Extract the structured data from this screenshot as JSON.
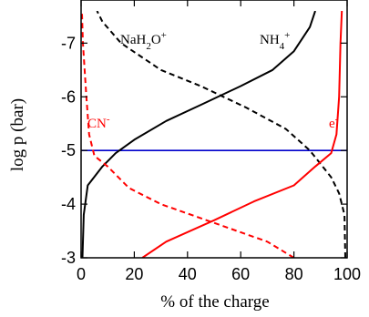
{
  "chart_data": {
    "type": "line",
    "xlabel": "% of the charge",
    "ylabel": "log p (bar)",
    "xlim": [
      0,
      100
    ],
    "ylim": [
      -3,
      -7.6
    ],
    "y_inverted": true,
    "x_ticks": [
      "0",
      "20",
      "40",
      "60",
      "80",
      "100"
    ],
    "y_ticks": [
      "-3",
      "-4",
      "-5",
      "-6",
      "-7"
    ],
    "hline": {
      "y": -5,
      "color": "#0000cc"
    },
    "series": [
      {
        "name": "NH4+",
        "color": "#000000",
        "dash": "solid",
        "points": [
          [
            0.5,
            -3.0
          ],
          [
            1,
            -3.8
          ],
          [
            2.5,
            -4.35
          ],
          [
            8,
            -4.7
          ],
          [
            13,
            -4.95
          ],
          [
            20,
            -5.2
          ],
          [
            32,
            -5.55
          ],
          [
            45,
            -5.85
          ],
          [
            60,
            -6.2
          ],
          [
            72,
            -6.5
          ],
          [
            80,
            -6.85
          ],
          [
            86,
            -7.3
          ],
          [
            88,
            -7.6
          ]
        ]
      },
      {
        "name": "NaH2O+",
        "color": "#000000",
        "dash": "dashed",
        "points": [
          [
            99.3,
            -3.0
          ],
          [
            99,
            -3.8
          ],
          [
            97,
            -4.2
          ],
          [
            94,
            -4.5
          ],
          [
            86,
            -5.0
          ],
          [
            77,
            -5.4
          ],
          [
            62,
            -5.8
          ],
          [
            45,
            -6.2
          ],
          [
            30,
            -6.5
          ],
          [
            15,
            -7.0
          ],
          [
            8,
            -7.4
          ],
          [
            6,
            -7.6
          ]
        ]
      },
      {
        "name": "e-",
        "color": "#ff0000",
        "dash": "solid",
        "points": [
          [
            23,
            -3.0
          ],
          [
            32,
            -3.3
          ],
          [
            50,
            -3.7
          ],
          [
            65,
            -4.05
          ],
          [
            80,
            -4.35
          ],
          [
            88,
            -4.7
          ],
          [
            94,
            -4.95
          ],
          [
            96,
            -5.3
          ],
          [
            97,
            -6.0
          ],
          [
            97.5,
            -7.0
          ],
          [
            98,
            -7.6
          ]
        ]
      },
      {
        "name": "CN-",
        "color": "#ff0000",
        "dash": "dashed",
        "points": [
          [
            80,
            -3.0
          ],
          [
            70,
            -3.3
          ],
          [
            50,
            -3.65
          ],
          [
            30,
            -4.0
          ],
          [
            18,
            -4.3
          ],
          [
            10,
            -4.7
          ],
          [
            5,
            -4.9
          ],
          [
            3,
            -5.3
          ],
          [
            2,
            -6.0
          ],
          [
            0.7,
            -7.0
          ],
          [
            0.3,
            -7.6
          ]
        ]
      }
    ],
    "annotations": [
      {
        "text": "NaH2O+",
        "html": "NaH<tspan baseline-shift='sub' font-size='11'>2</tspan>O<tspan baseline-shift='super' font-size='11'>+</tspan>",
        "color": "#000000"
      },
      {
        "text": "NH4+",
        "html": "NH<tspan baseline-shift='sub' font-size='11'>4</tspan><tspan baseline-shift='super' font-size='11'>+</tspan>",
        "color": "#000000"
      },
      {
        "text": "CN-",
        "html": "CN<tspan baseline-shift='super' font-size='11'>-</tspan>",
        "color": "#ff0000"
      },
      {
        "text": "e-",
        "html": "e<tspan baseline-shift='super' font-size='11'>-</tspan>",
        "color": "#ff0000"
      }
    ]
  }
}
